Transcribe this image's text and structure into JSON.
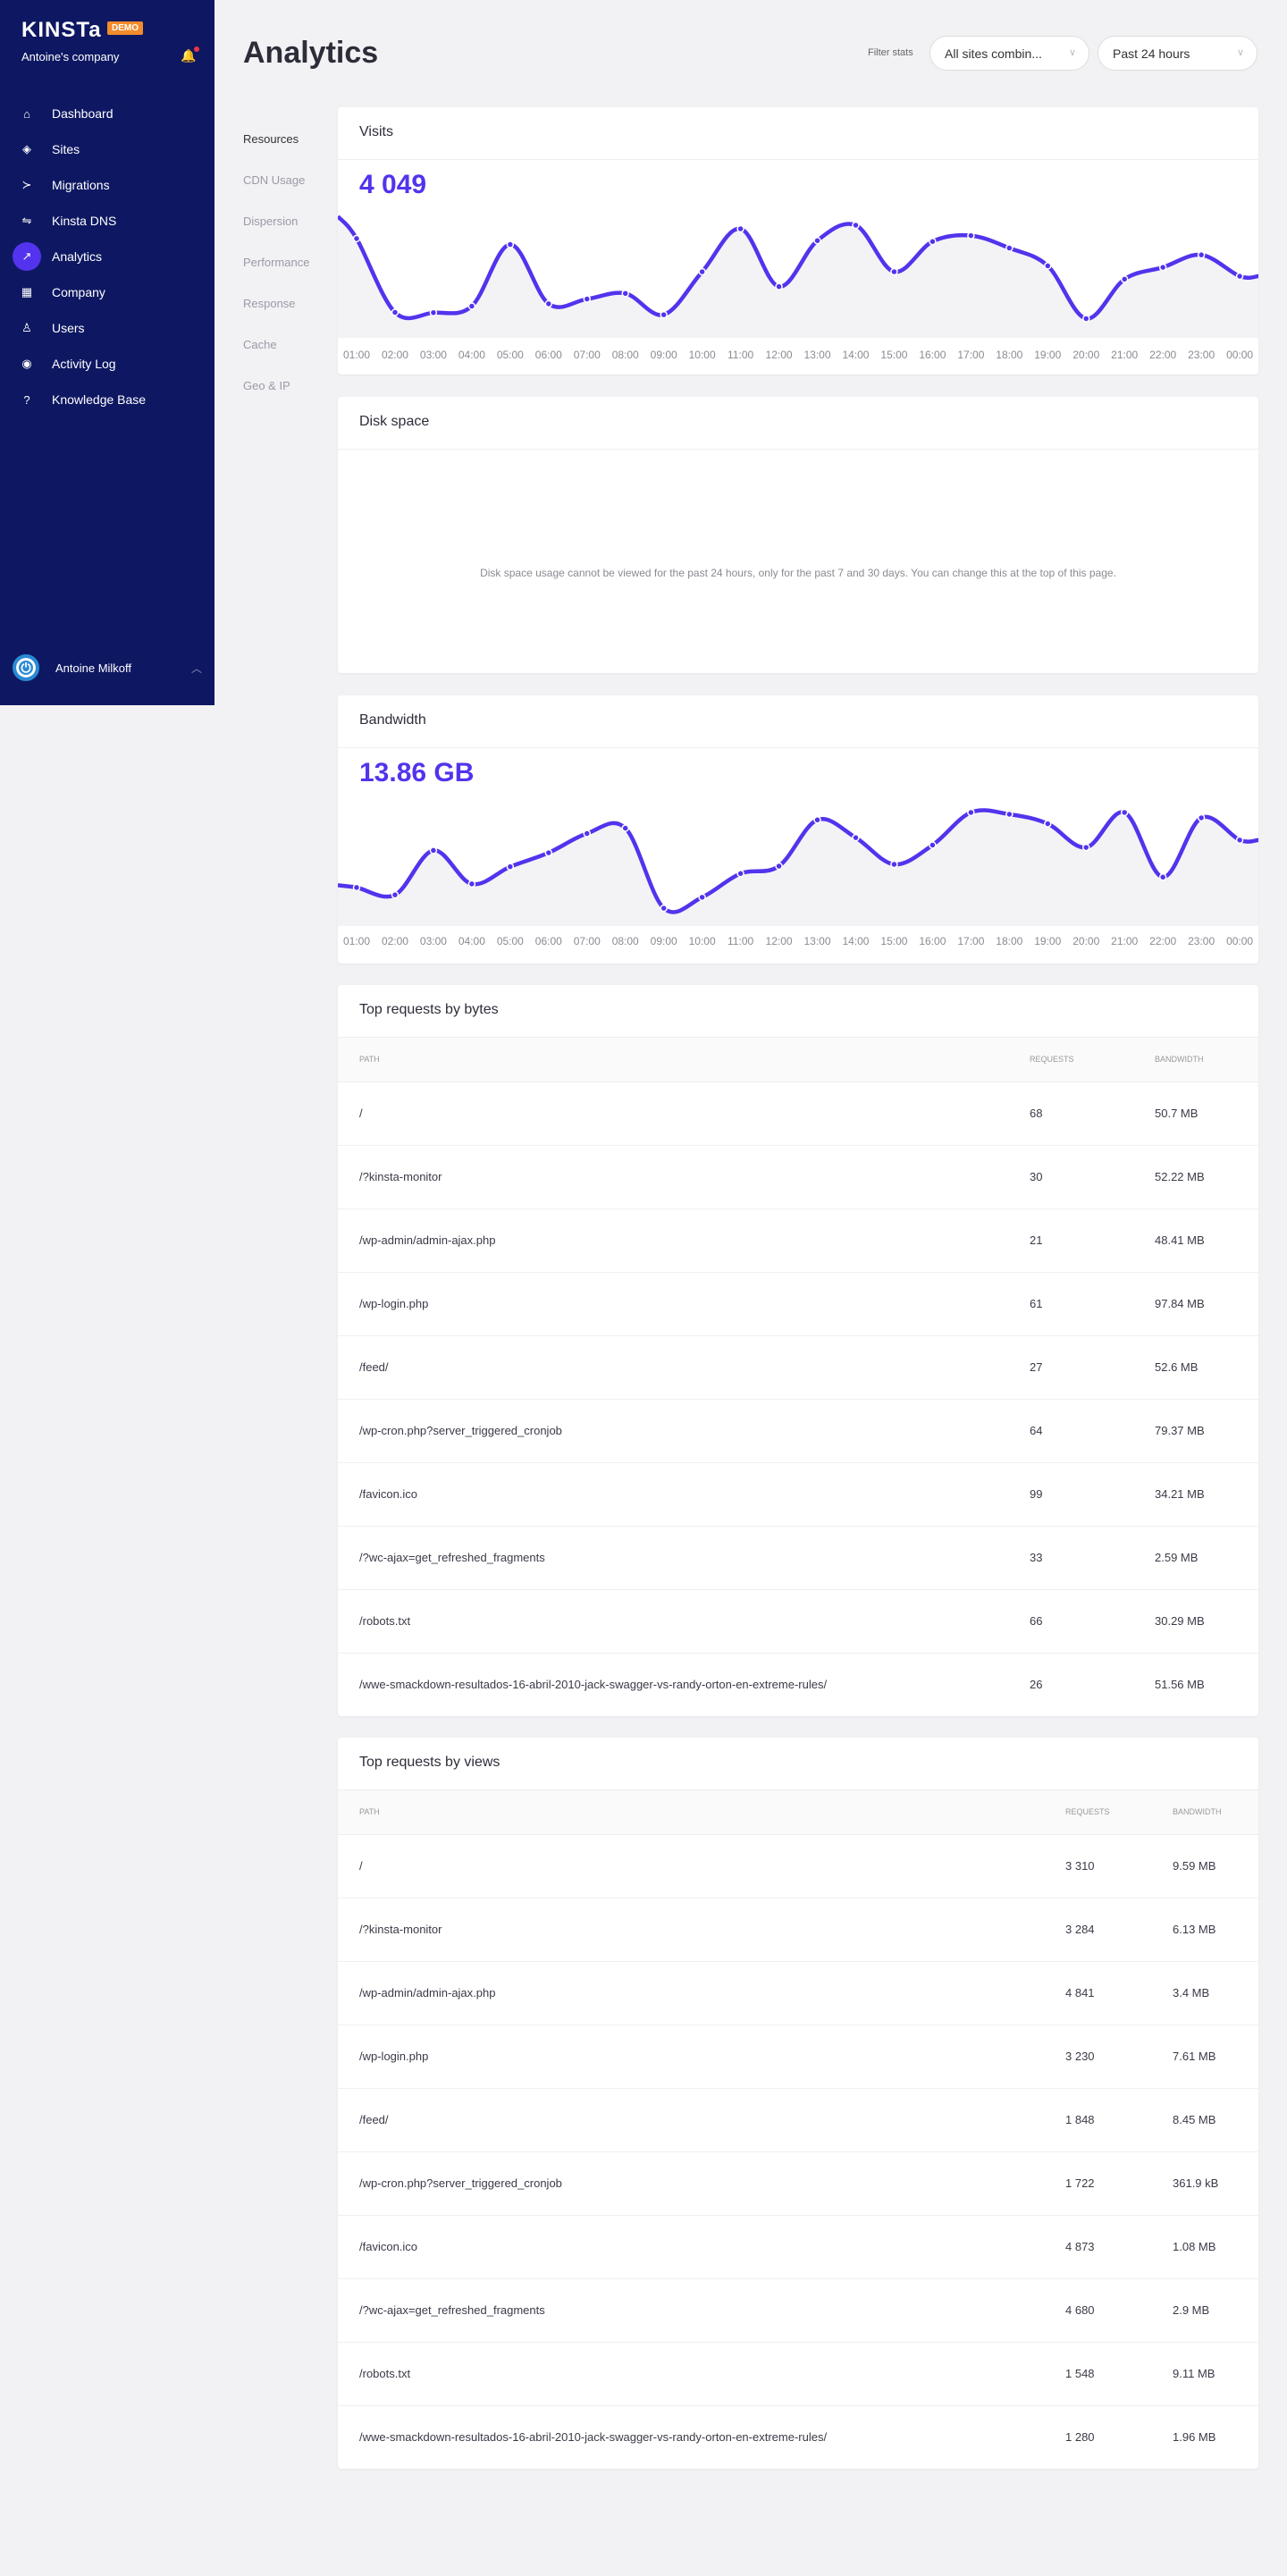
{
  "sidebar": {
    "logo": "KINSTa",
    "badge": "DEMO",
    "company": "Antoine's company",
    "items": [
      {
        "label": "Dashboard",
        "icon": "home-icon",
        "g": "⌂"
      },
      {
        "label": "Sites",
        "icon": "layers-icon",
        "g": "◈"
      },
      {
        "label": "Migrations",
        "icon": "migrate-icon",
        "g": "≻"
      },
      {
        "label": "Kinsta DNS",
        "icon": "dns-icon",
        "g": "⇋"
      },
      {
        "label": "Analytics",
        "icon": "trending-icon",
        "g": "↗",
        "active": true
      },
      {
        "label": "Company",
        "icon": "building-icon",
        "g": "▦"
      },
      {
        "label": "Users",
        "icon": "add-user-icon",
        "g": "♙"
      },
      {
        "label": "Activity Log",
        "icon": "eye-icon",
        "g": "◉"
      },
      {
        "label": "Knowledge Base",
        "icon": "help-icon",
        "g": "?"
      }
    ],
    "user": {
      "name": "Antoine Milkoff"
    }
  },
  "header": {
    "title": "Analytics",
    "filter_label": "Filter stats",
    "site_select": "All sites combin...",
    "period_select": "Past 24 hours"
  },
  "subnav": [
    "Resources",
    "CDN Usage",
    "Dispersion",
    "Performance",
    "Response",
    "Cache",
    "Geo & IP"
  ],
  "colors": {
    "accent": "#5333ed",
    "sidebar": "#0e1862",
    "badge": "#f48b2b"
  },
  "visits": {
    "title": "Visits",
    "total": "4 049"
  },
  "disk": {
    "title": "Disk space",
    "message": "Disk space usage cannot be viewed for the past 24 hours, only for the past 7 and 30 days. You can change this at the top of this page."
  },
  "bandwidth": {
    "title": "Bandwidth",
    "total": "13.86 GB"
  },
  "chart_data": [
    {
      "type": "area",
      "title": "Visits",
      "x": [
        "01:00",
        "02:00",
        "03:00",
        "04:00",
        "05:00",
        "06:00",
        "07:00",
        "08:00",
        "09:00",
        "10:00",
        "11:00",
        "12:00",
        "13:00",
        "14:00",
        "15:00",
        "16:00",
        "17:00",
        "18:00",
        "19:00",
        "20:00",
        "21:00",
        "22:00",
        "23:00",
        "00:00"
      ],
      "values": [
        335,
        86,
        85,
        107,
        315,
        115,
        131,
        150,
        78,
        223,
        368,
        173,
        328,
        380,
        223,
        325,
        345,
        303,
        243,
        65,
        198,
        238,
        280,
        208
      ],
      "ylim": [
        0,
        600
      ],
      "grid": false,
      "y_axis_shown": false
    },
    {
      "type": "area",
      "title": "Bandwidth",
      "x": [
        "01:00",
        "02:00",
        "03:00",
        "04:00",
        "05:00",
        "06:00",
        "07:00",
        "08:00",
        "09:00",
        "10:00",
        "11:00",
        "12:00",
        "13:00",
        "14:00",
        "15:00",
        "16:00",
        "17:00",
        "18:00",
        "19:00",
        "20:00",
        "21:00",
        "22:00",
        "23:00",
        "00:00"
      ],
      "values": [
        130,
        105,
        255,
        142,
        200,
        247,
        312,
        330,
        60,
        97,
        177,
        202,
        358,
        298,
        208,
        273,
        383,
        377,
        345,
        265,
        383,
        165,
        365,
        290
      ],
      "ylim": [
        0,
        600
      ],
      "grid": false,
      "y_axis_shown": false
    }
  ],
  "bytes": {
    "title": "Top requests by bytes",
    "columns": [
      "Path",
      "Requests",
      "Bandwidth"
    ],
    "rows": [
      [
        "/",
        "68",
        "50.7 MB"
      ],
      [
        "/?kinsta-monitor",
        "30",
        "52.22 MB"
      ],
      [
        "/wp-admin/admin-ajax.php",
        "21",
        "48.41 MB"
      ],
      [
        "/wp-login.php",
        "61",
        "97.84 MB"
      ],
      [
        "/feed/",
        "27",
        "52.6 MB"
      ],
      [
        "/wp-cron.php?server_triggered_cronjob",
        "64",
        "79.37 MB"
      ],
      [
        "/favicon.ico",
        "99",
        "34.21 MB"
      ],
      [
        "/?wc-ajax=get_refreshed_fragments",
        "33",
        "2.59 MB"
      ],
      [
        "/robots.txt",
        "66",
        "30.29 MB"
      ],
      [
        "/wwe-smackdown-resultados-16-abril-2010-jack-swagger-vs-randy-orton-en-extreme-rules/",
        "26",
        "51.56 MB"
      ]
    ]
  },
  "views": {
    "title": "Top requests by views",
    "columns": [
      "Path",
      "Requests",
      "Bandwidth"
    ],
    "rows": [
      [
        "/",
        "3 310",
        "9.59 MB"
      ],
      [
        "/?kinsta-monitor",
        "3 284",
        "6.13 MB"
      ],
      [
        "/wp-admin/admin-ajax.php",
        "4 841",
        "3.4 MB"
      ],
      [
        "/wp-login.php",
        "3 230",
        "7.61 MB"
      ],
      [
        "/feed/",
        "1 848",
        "8.45 MB"
      ],
      [
        "/wp-cron.php?server_triggered_cronjob",
        "1 722",
        "361.9 kB"
      ],
      [
        "/favicon.ico",
        "4 873",
        "1.08 MB"
      ],
      [
        "/?wc-ajax=get_refreshed_fragments",
        "4 680",
        "2.9 MB"
      ],
      [
        "/robots.txt",
        "1 548",
        "9.11 MB"
      ],
      [
        "/wwe-smackdown-resultados-16-abril-2010-jack-swagger-vs-randy-orton-en-extreme-rules/",
        "1 280",
        "1.96 MB"
      ]
    ]
  }
}
